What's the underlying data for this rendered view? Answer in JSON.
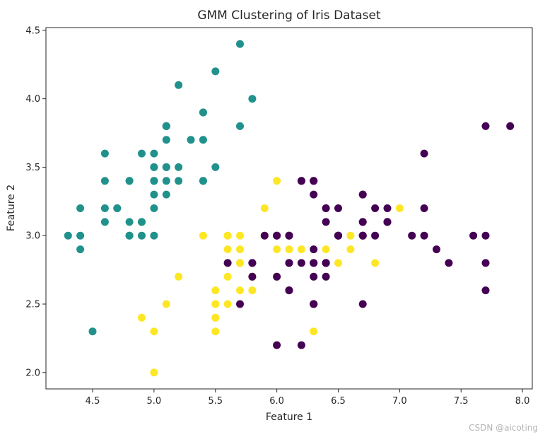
{
  "chart_data": {
    "type": "scatter",
    "title": "GMM Clustering of Iris Dataset",
    "xlabel": "Feature 1",
    "ylabel": "Feature 2",
    "xlim": [
      4.12,
      8.08
    ],
    "ylim": [
      1.88,
      4.52
    ],
    "xticks": [
      "4.5",
      "5.0",
      "5.5",
      "6.0",
      "6.5",
      "7.0",
      "7.5",
      "8.0"
    ],
    "yticks": [
      "2.0",
      "2.5",
      "3.0",
      "3.5",
      "4.0",
      "4.5"
    ],
    "grid": false,
    "colors": {
      "teal": "#21918c",
      "yellow": "#fde725",
      "purple": "#440154"
    },
    "series": [
      {
        "color": "#21918c",
        "points": [
          [
            5.1,
            3.5
          ],
          [
            4.9,
            3.0
          ],
          [
            4.7,
            3.2
          ],
          [
            4.6,
            3.1
          ],
          [
            5.0,
            3.6
          ],
          [
            5.4,
            3.9
          ],
          [
            4.6,
            3.4
          ],
          [
            5.0,
            3.4
          ],
          [
            4.4,
            2.9
          ],
          [
            4.9,
            3.1
          ],
          [
            5.4,
            3.7
          ],
          [
            4.8,
            3.4
          ],
          [
            4.8,
            3.0
          ],
          [
            4.3,
            3.0
          ],
          [
            5.8,
            4.0
          ],
          [
            5.7,
            4.4
          ],
          [
            5.4,
            3.9
          ],
          [
            5.1,
            3.5
          ],
          [
            5.7,
            3.8
          ],
          [
            5.1,
            3.8
          ],
          [
            5.4,
            3.4
          ],
          [
            5.1,
            3.7
          ],
          [
            4.6,
            3.6
          ],
          [
            5.1,
            3.3
          ],
          [
            4.8,
            3.4
          ],
          [
            5.0,
            3.0
          ],
          [
            5.0,
            3.4
          ],
          [
            5.2,
            3.5
          ],
          [
            5.2,
            3.4
          ],
          [
            4.7,
            3.2
          ],
          [
            4.8,
            3.1
          ],
          [
            5.4,
            3.4
          ],
          [
            5.2,
            4.1
          ],
          [
            5.5,
            4.2
          ],
          [
            4.9,
            3.1
          ],
          [
            5.0,
            3.2
          ],
          [
            5.5,
            3.5
          ],
          [
            4.9,
            3.6
          ],
          [
            4.4,
            3.0
          ],
          [
            5.1,
            3.4
          ],
          [
            5.0,
            3.5
          ],
          [
            4.5,
            2.3
          ],
          [
            4.4,
            3.2
          ],
          [
            5.0,
            3.5
          ],
          [
            5.1,
            3.8
          ],
          [
            4.8,
            3.0
          ],
          [
            5.1,
            3.8
          ],
          [
            4.6,
            3.2
          ],
          [
            5.3,
            3.7
          ],
          [
            5.0,
            3.3
          ]
        ]
      },
      {
        "color": "#fde725",
        "points": [
          [
            5.5,
            2.3
          ],
          [
            6.5,
            2.8
          ],
          [
            5.7,
            2.8
          ],
          [
            4.9,
            2.4
          ],
          [
            6.6,
            2.9
          ],
          [
            5.2,
            2.7
          ],
          [
            5.0,
            2.0
          ],
          [
            5.9,
            3.0
          ],
          [
            6.0,
            2.2
          ],
          [
            5.6,
            2.9
          ],
          [
            5.6,
            3.0
          ],
          [
            5.8,
            2.7
          ],
          [
            5.6,
            2.5
          ],
          [
            5.9,
            3.2
          ],
          [
            6.1,
            2.8
          ],
          [
            6.4,
            2.9
          ],
          [
            6.6,
            3.0
          ],
          [
            6.8,
            2.8
          ],
          [
            6.0,
            2.9
          ],
          [
            5.7,
            2.6
          ],
          [
            5.5,
            2.4
          ],
          [
            5.5,
            2.4
          ],
          [
            5.8,
            2.7
          ],
          [
            6.0,
            2.7
          ],
          [
            5.4,
            3.0
          ],
          [
            6.0,
            3.4
          ],
          [
            6.3,
            2.3
          ],
          [
            5.6,
            3.0
          ],
          [
            5.5,
            2.5
          ],
          [
            5.5,
            2.6
          ],
          [
            6.1,
            3.0
          ],
          [
            5.8,
            2.6
          ],
          [
            5.0,
            2.3
          ],
          [
            5.6,
            2.7
          ],
          [
            5.7,
            3.0
          ],
          [
            5.7,
            2.9
          ],
          [
            6.2,
            2.9
          ],
          [
            5.1,
            2.5
          ],
          [
            5.7,
            2.8
          ],
          [
            7.0,
            3.2
          ],
          [
            6.1,
            2.9
          ],
          [
            5.6,
            2.8
          ],
          [
            5.5,
            2.5
          ]
        ]
      },
      {
        "color": "#440154",
        "points": [
          [
            6.4,
            3.2
          ],
          [
            6.9,
            3.1
          ],
          [
            6.3,
            3.3
          ],
          [
            6.7,
            3.1
          ],
          [
            6.2,
            2.2
          ],
          [
            6.3,
            2.5
          ],
          [
            6.1,
            2.8
          ],
          [
            6.7,
            3.0
          ],
          [
            6.0,
            2.2
          ],
          [
            6.1,
            2.6
          ],
          [
            6.3,
            2.9
          ],
          [
            6.1,
            2.8
          ],
          [
            6.4,
            2.8
          ],
          [
            6.8,
            3.0
          ],
          [
            6.7,
            3.0
          ],
          [
            5.7,
            2.5
          ],
          [
            5.8,
            2.8
          ],
          [
            6.4,
            3.2
          ],
          [
            6.5,
            3.0
          ],
          [
            7.7,
            3.8
          ],
          [
            7.7,
            2.6
          ],
          [
            6.9,
            3.2
          ],
          [
            5.6,
            2.8
          ],
          [
            7.7,
            2.8
          ],
          [
            6.3,
            2.7
          ],
          [
            6.7,
            3.3
          ],
          [
            7.2,
            3.2
          ],
          [
            6.2,
            2.8
          ],
          [
            6.1,
            3.0
          ],
          [
            6.4,
            2.8
          ],
          [
            7.2,
            3.0
          ],
          [
            7.4,
            2.8
          ],
          [
            7.9,
            3.8
          ],
          [
            6.4,
            2.8
          ],
          [
            6.3,
            2.8
          ],
          [
            6.1,
            2.6
          ],
          [
            7.7,
            3.0
          ],
          [
            6.3,
            3.4
          ],
          [
            6.4,
            3.1
          ],
          [
            6.0,
            3.0
          ],
          [
            6.9,
            3.1
          ],
          [
            6.7,
            3.1
          ],
          [
            6.9,
            3.1
          ],
          [
            5.8,
            2.7
          ],
          [
            6.8,
            3.2
          ],
          [
            6.7,
            3.3
          ],
          [
            6.7,
            3.0
          ],
          [
            6.3,
            2.5
          ],
          [
            6.5,
            3.0
          ],
          [
            6.2,
            3.4
          ],
          [
            5.9,
            3.0
          ],
          [
            5.8,
            2.8
          ],
          [
            7.1,
            3.0
          ],
          [
            6.5,
            3.2
          ],
          [
            7.6,
            3.0
          ],
          [
            7.3,
            2.9
          ],
          [
            6.7,
            2.5
          ],
          [
            7.2,
            3.6
          ],
          [
            6.2,
            3.4
          ],
          [
            6.0,
            2.7
          ],
          [
            6.3,
            2.5
          ],
          [
            6.4,
            2.7
          ],
          [
            6.1,
            3.0
          ],
          [
            6.0,
            3.0
          ],
          [
            6.3,
            2.8
          ],
          [
            6.5,
            3.0
          ],
          [
            6.3,
            3.4
          ]
        ]
      }
    ]
  },
  "watermark": "CSDN @aicoting"
}
